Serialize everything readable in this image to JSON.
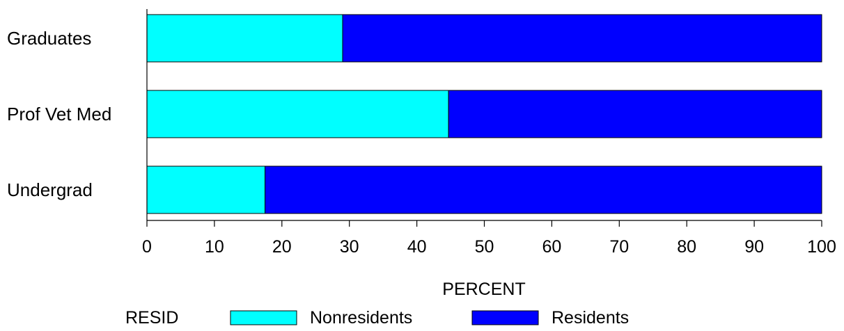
{
  "chart_data": {
    "type": "bar",
    "orientation": "horizontal",
    "stacked": true,
    "categories": [
      "Graduates",
      "Prof Vet Med",
      "Undergrad"
    ],
    "series": [
      {
        "name": "Nonresidents",
        "values": [
          29.0,
          44.7,
          17.5
        ],
        "color": "#00FFFF"
      },
      {
        "name": "Residents",
        "values": [
          71.0,
          55.3,
          82.5
        ],
        "color": "#0000FF"
      }
    ],
    "xlabel": "PERCENT",
    "xlim": [
      0,
      100
    ],
    "xticks": [
      0,
      10,
      20,
      30,
      40,
      50,
      60,
      70,
      80,
      90,
      100
    ],
    "grid": false,
    "legend": {
      "title": "RESID",
      "placement": "bottom"
    }
  }
}
